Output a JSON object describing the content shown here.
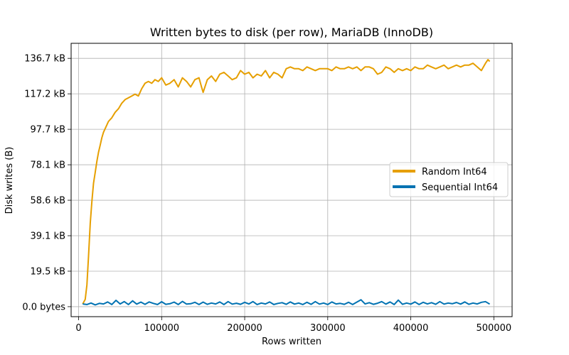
{
  "chart_data": {
    "type": "line",
    "title": "Written bytes to disk (per row), MariaDB (InnoDB)",
    "xlabel": "Rows written",
    "ylabel": "Disk writes (B)",
    "xlim": [
      -9000,
      522000
    ],
    "ylim": [
      -5500,
      145000
    ],
    "x_ticks": [
      {
        "value": 0,
        "label": "0"
      },
      {
        "value": 100000,
        "label": "100000"
      },
      {
        "value": 200000,
        "label": "200000"
      },
      {
        "value": 300000,
        "label": "300000"
      },
      {
        "value": 400000,
        "label": "400000"
      },
      {
        "value": 500000,
        "label": "500000"
      }
    ],
    "y_ticks": [
      {
        "value": 0,
        "label": "0.0 bytes"
      },
      {
        "value": 19531,
        "label": "19.5 kB"
      },
      {
        "value": 39062,
        "label": "39.1 kB"
      },
      {
        "value": 58594,
        "label": "58.6 kB"
      },
      {
        "value": 78125,
        "label": "78.1 kB"
      },
      {
        "value": 97656,
        "label": "97.7 kB"
      },
      {
        "value": 117188,
        "label": "117.2 kB"
      },
      {
        "value": 136719,
        "label": "136.7 kB"
      }
    ],
    "grid": true,
    "legend_position": "center-right",
    "series": [
      {
        "name": "Random Int64",
        "color": "#e69f00",
        "x": [
          5000,
          8000,
          10000,
          12000,
          14000,
          16000,
          18000,
          20000,
          22000,
          24000,
          26000,
          28000,
          30000,
          33000,
          36000,
          40000,
          44000,
          48000,
          52000,
          56000,
          60000,
          64000,
          68000,
          72000,
          76000,
          80000,
          84000,
          88000,
          92000,
          96000,
          100000,
          105000,
          110000,
          115000,
          120000,
          125000,
          130000,
          135000,
          140000,
          145000,
          148000,
          150000,
          155000,
          160000,
          165000,
          170000,
          175000,
          180000,
          185000,
          190000,
          195000,
          200000,
          205000,
          210000,
          215000,
          220000,
          225000,
          230000,
          235000,
          240000,
          245000,
          250000,
          255000,
          260000,
          265000,
          270000,
          275000,
          280000,
          285000,
          290000,
          295000,
          300000,
          305000,
          310000,
          315000,
          320000,
          325000,
          330000,
          335000,
          340000,
          345000,
          350000,
          355000,
          360000,
          365000,
          370000,
          375000,
          380000,
          385000,
          390000,
          395000,
          400000,
          405000,
          410000,
          415000,
          420000,
          425000,
          430000,
          435000,
          440000,
          445000,
          450000,
          455000,
          460000,
          465000,
          470000,
          475000,
          480000,
          485000,
          490000,
          493000,
          495000
        ],
        "values": [
          1500,
          4000,
          12000,
          28000,
          46000,
          58000,
          68000,
          74000,
          80000,
          85000,
          89000,
          93000,
          96000,
          99000,
          102000,
          104000,
          107000,
          109000,
          112000,
          114000,
          115000,
          116000,
          117000,
          116000,
          120000,
          123000,
          124000,
          123000,
          125000,
          124000,
          126000,
          122000,
          123000,
          125000,
          121000,
          126000,
          124000,
          121000,
          125000,
          126000,
          121000,
          118000,
          125000,
          127000,
          124000,
          128000,
          129000,
          127000,
          125000,
          126000,
          130000,
          128000,
          129000,
          126000,
          128000,
          127000,
          130000,
          126000,
          129000,
          128000,
          126000,
          131000,
          132000,
          131000,
          131000,
          130000,
          132000,
          131000,
          130000,
          131000,
          131000,
          131000,
          130000,
          132000,
          131000,
          131000,
          132000,
          131000,
          132000,
          130000,
          132000,
          132000,
          131000,
          128000,
          129000,
          132000,
          131000,
          129000,
          131000,
          130000,
          131000,
          130000,
          132000,
          131000,
          131000,
          133000,
          132000,
          131000,
          132000,
          133000,
          131000,
          132000,
          133000,
          132000,
          133000,
          133000,
          134000,
          132000,
          130000,
          134000,
          136000,
          135000
        ]
      },
      {
        "name": "Sequential Int64",
        "color": "#0072b2",
        "x": [
          5000,
          10000,
          15000,
          20000,
          25000,
          30000,
          35000,
          40000,
          45000,
          50000,
          55000,
          60000,
          65000,
          70000,
          75000,
          80000,
          85000,
          90000,
          95000,
          100000,
          105000,
          110000,
          115000,
          120000,
          125000,
          130000,
          135000,
          140000,
          145000,
          150000,
          155000,
          160000,
          165000,
          170000,
          175000,
          180000,
          185000,
          190000,
          195000,
          200000,
          205000,
          210000,
          215000,
          220000,
          225000,
          230000,
          235000,
          240000,
          245000,
          250000,
          255000,
          260000,
          265000,
          270000,
          275000,
          280000,
          285000,
          290000,
          295000,
          300000,
          305000,
          310000,
          315000,
          320000,
          325000,
          330000,
          335000,
          340000,
          345000,
          350000,
          355000,
          360000,
          365000,
          370000,
          375000,
          380000,
          385000,
          390000,
          395000,
          400000,
          405000,
          410000,
          415000,
          420000,
          425000,
          430000,
          435000,
          440000,
          445000,
          450000,
          455000,
          460000,
          465000,
          470000,
          475000,
          480000,
          485000,
          490000,
          495000
        ],
        "values": [
          1500,
          1200,
          2000,
          1000,
          1800,
          1500,
          2600,
          1200,
          3500,
          1500,
          2800,
          1200,
          3200,
          1400,
          2500,
          1300,
          2600,
          1800,
          1200,
          2700,
          1300,
          1600,
          2500,
          1200,
          2900,
          1400,
          1600,
          2400,
          1200,
          2500,
          1300,
          2000,
          1500,
          2600,
          1200,
          2800,
          1400,
          1900,
          1300,
          2400,
          1500,
          2800,
          1200,
          2000,
          1500,
          2600,
          1200,
          1800,
          2200,
          1300,
          2600,
          1400,
          2000,
          1200,
          2400,
          1300,
          2800,
          1400,
          2000,
          1200,
          2600,
          1500,
          1800,
          1300,
          2400,
          1200,
          2500,
          3800,
          1500,
          2200,
          1300,
          1900,
          2800,
          1400,
          2600,
          1200,
          3600,
          1300,
          2000,
          1400,
          2600,
          1200,
          2400,
          1500,
          2200,
          1300,
          2800,
          1400,
          2000,
          1600,
          2300,
          1400,
          2600,
          1300,
          2000,
          1500,
          2400,
          2800,
          1400
        ]
      }
    ]
  }
}
